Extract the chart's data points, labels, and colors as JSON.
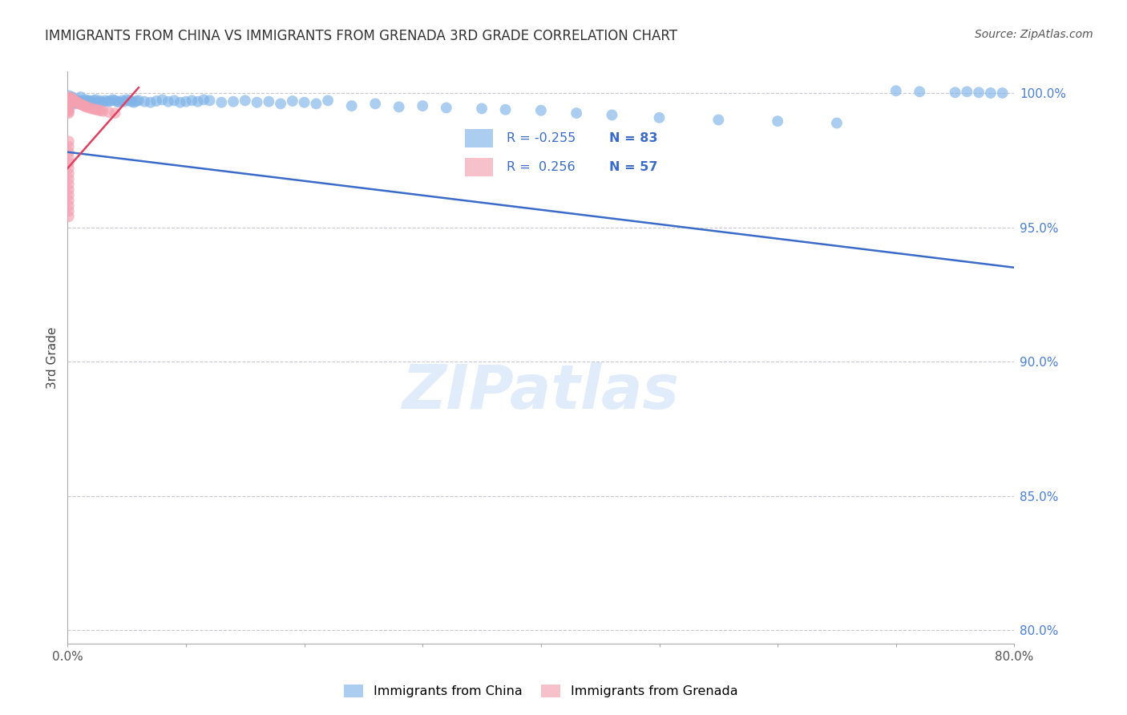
{
  "title": "IMMIGRANTS FROM CHINA VS IMMIGRANTS FROM GRENADA 3RD GRADE CORRELATION CHART",
  "source": "Source: ZipAtlas.com",
  "ylabel": "3rd Grade",
  "xlim": [
    0.0,
    0.8
  ],
  "ylim": [
    0.795,
    1.008
  ],
  "xticks": [
    0.0,
    0.1,
    0.2,
    0.3,
    0.4,
    0.5,
    0.6,
    0.7,
    0.8
  ],
  "xticklabels": [
    "0.0%",
    "",
    "",
    "",
    "",
    "",
    "",
    "",
    "80.0%"
  ],
  "yticks": [
    0.8,
    0.85,
    0.9,
    0.95,
    1.0
  ],
  "yticklabels": [
    "80.0%",
    "85.0%",
    "90.0%",
    "95.0%",
    "100.0%"
  ],
  "grid_color": "#c8c8d0",
  "background_color": "#ffffff",
  "blue_color": "#7fb3e8",
  "pink_color": "#f4a0b0",
  "blue_trend_color": "#3a6bc8",
  "pink_trend_color": "#e04060",
  "ytick_color": "#4a7fd4",
  "legend_r_blue": "-0.255",
  "legend_n_blue": "83",
  "legend_r_pink": "0.256",
  "legend_n_pink": "57",
  "blue_trend_x": [
    0.0,
    0.8
  ],
  "blue_trend_y": [
    0.978,
    0.935
  ],
  "pink_trend_x": [
    0.0,
    0.06
  ],
  "pink_trend_y": [
    0.972,
    1.002
  ],
  "blue_x": [
    0.001,
    0.002,
    0.003,
    0.004,
    0.005,
    0.006,
    0.007,
    0.008,
    0.009,
    0.01,
    0.011,
    0.012,
    0.013,
    0.014,
    0.015,
    0.016,
    0.017,
    0.018,
    0.019,
    0.02,
    0.022,
    0.024,
    0.026,
    0.028,
    0.03,
    0.032,
    0.034,
    0.036,
    0.038,
    0.04,
    0.042,
    0.044,
    0.046,
    0.048,
    0.05,
    0.052,
    0.054,
    0.056,
    0.058,
    0.06,
    0.065,
    0.07,
    0.075,
    0.08,
    0.085,
    0.09,
    0.095,
    0.1,
    0.105,
    0.11,
    0.115,
    0.12,
    0.13,
    0.14,
    0.15,
    0.16,
    0.17,
    0.18,
    0.19,
    0.2,
    0.21,
    0.22,
    0.24,
    0.26,
    0.28,
    0.3,
    0.32,
    0.35,
    0.37,
    0.4,
    0.43,
    0.46,
    0.5,
    0.55,
    0.6,
    0.65,
    0.7,
    0.72,
    0.75,
    0.76,
    0.77,
    0.78,
    0.79
  ],
  "blue_y": [
    0.999,
    0.998,
    0.9975,
    0.9985,
    0.997,
    0.9965,
    0.996,
    0.9975,
    0.997,
    0.9968,
    0.9985,
    0.9972,
    0.996,
    0.9965,
    0.9975,
    0.9968,
    0.997,
    0.9972,
    0.9965,
    0.9968,
    0.9972,
    0.9975,
    0.9968,
    0.997,
    0.9965,
    0.9972,
    0.9968,
    0.997,
    0.9975,
    0.9972,
    0.9968,
    0.9965,
    0.9972,
    0.9968,
    0.9975,
    0.9972,
    0.9968,
    0.9965,
    0.997,
    0.9972,
    0.9968,
    0.9965,
    0.997,
    0.9975,
    0.9968,
    0.9972,
    0.9965,
    0.9968,
    0.9972,
    0.9968,
    0.9975,
    0.9972,
    0.9965,
    0.9968,
    0.9972,
    0.9965,
    0.9968,
    0.996,
    0.997,
    0.9965,
    0.996,
    0.9972,
    0.9952,
    0.996,
    0.9948,
    0.9952,
    0.9945,
    0.9942,
    0.9938,
    0.9935,
    0.9925,
    0.9918,
    0.9908,
    0.99,
    0.9895,
    0.9888,
    1.0008,
    1.0005,
    1.0002,
    1.0005,
    1.0002,
    1.0,
    1.0
  ],
  "pink_x": [
    0.001,
    0.001,
    0.001,
    0.001,
    0.001,
    0.001,
    0.001,
    0.001,
    0.001,
    0.001,
    0.001,
    0.001,
    0.001,
    0.002,
    0.002,
    0.002,
    0.003,
    0.003,
    0.004,
    0.004,
    0.005,
    0.005,
    0.006,
    0.007,
    0.008,
    0.009,
    0.01,
    0.011,
    0.012,
    0.013,
    0.014,
    0.015,
    0.016,
    0.018,
    0.02,
    0.022,
    0.024,
    0.026,
    0.028,
    0.03,
    0.035,
    0.04,
    0.001,
    0.001,
    0.001,
    0.001,
    0.001,
    0.001,
    0.001,
    0.001,
    0.001,
    0.001,
    0.001,
    0.001,
    0.001,
    0.001,
    0.001
  ],
  "pink_y": [
    0.9985,
    0.998,
    0.9975,
    0.997,
    0.9965,
    0.996,
    0.9955,
    0.995,
    0.9945,
    0.994,
    0.9935,
    0.993,
    0.9925,
    0.9982,
    0.9975,
    0.9968,
    0.998,
    0.9972,
    0.9978,
    0.997,
    0.9975,
    0.9968,
    0.9972,
    0.9968,
    0.9965,
    0.9962,
    0.996,
    0.9958,
    0.9956,
    0.9954,
    0.9952,
    0.995,
    0.9948,
    0.9945,
    0.9942,
    0.994,
    0.9938,
    0.9936,
    0.9934,
    0.9932,
    0.9928,
    0.9925,
    0.982,
    0.98,
    0.978,
    0.976,
    0.974,
    0.972,
    0.97,
    0.968,
    0.966,
    0.964,
    0.962,
    0.96,
    0.958,
    0.956,
    0.954
  ]
}
